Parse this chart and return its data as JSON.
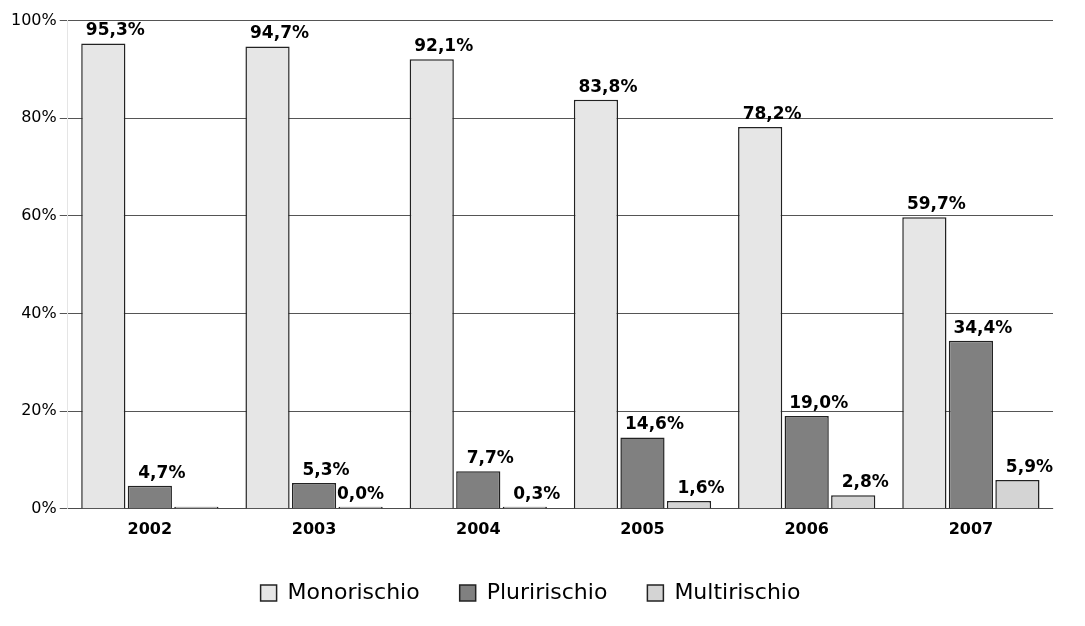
{
  "chart_data": {
    "type": "bar",
    "categories": [
      "2002",
      "2003",
      "2004",
      "2005",
      "2006",
      "2007"
    ],
    "series": [
      {
        "name": "Monorischio",
        "color": "#e6e6e6",
        "values": [
          95.3,
          94.7,
          92.1,
          83.8,
          78.2,
          59.7
        ],
        "value_labels": [
          "95,3%",
          "94,7%",
          "92,1%",
          "83,8%",
          "78,2%",
          "59,7%"
        ]
      },
      {
        "name": "Pluririschio",
        "color": "#808080",
        "values": [
          4.7,
          5.3,
          7.7,
          14.6,
          19.0,
          34.4
        ],
        "value_labels": [
          "4,7%",
          "5,3%",
          "7,7%",
          "14,6%",
          "19,0%",
          "34,4%"
        ]
      },
      {
        "name": "Multirischio",
        "color": "#d4d4d4",
        "values": [
          0.0,
          0.0,
          0.3,
          1.6,
          2.8,
          5.9
        ],
        "value_labels": [
          null,
          "0,0%",
          "0,3%",
          "1,6%",
          "2,8%",
          "5,9%"
        ]
      }
    ],
    "ylim": [
      0,
      100
    ],
    "yticks": [
      {
        "value": 0,
        "label": "0%"
      },
      {
        "value": 20,
        "label": "20%"
      },
      {
        "value": 40,
        "label": "40%"
      },
      {
        "value": 60,
        "label": "60%"
      },
      {
        "value": 80,
        "label": "80%"
      },
      {
        "value": 100,
        "label": "100%"
      }
    ],
    "grid": "y",
    "legend": "bottom"
  }
}
